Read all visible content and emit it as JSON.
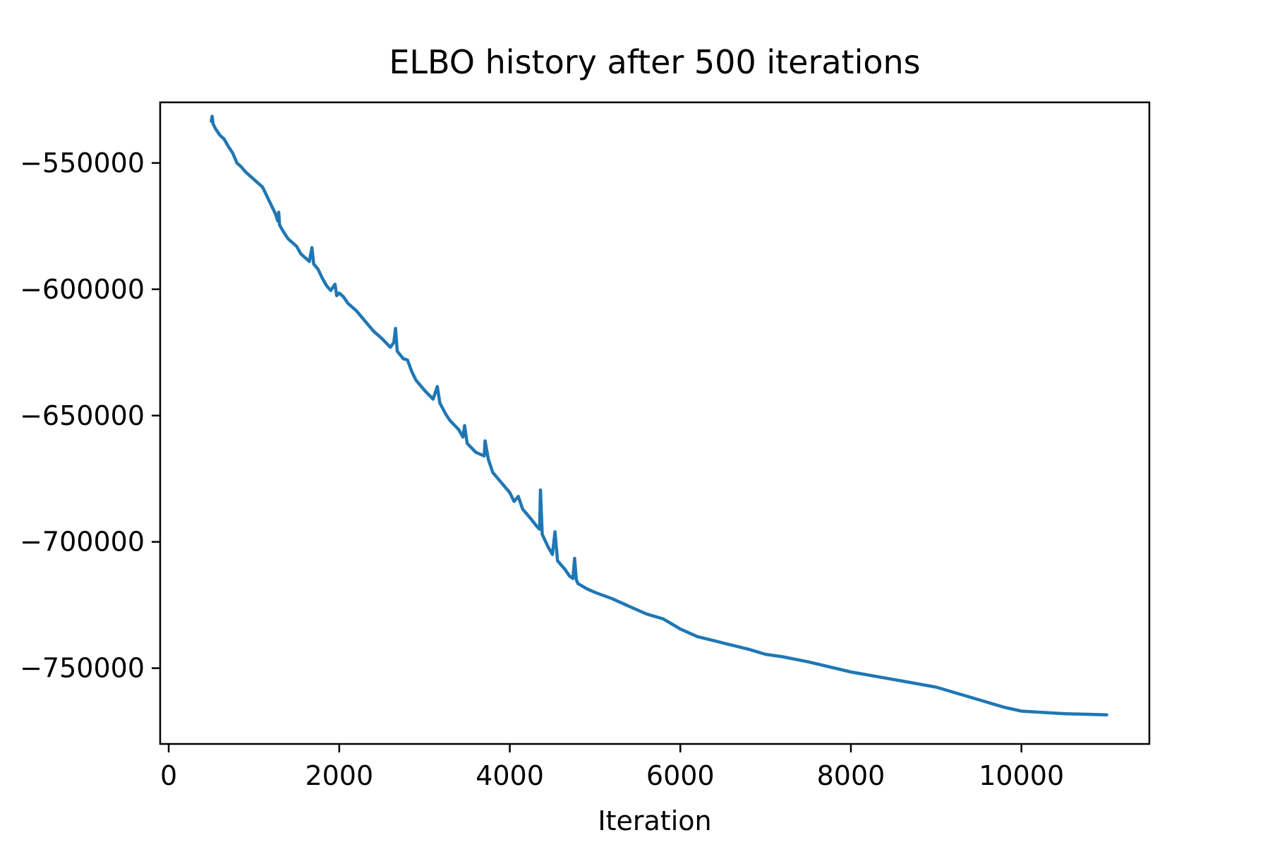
{
  "chart_data": {
    "type": "line",
    "title": "ELBO history after 500 iterations",
    "xlabel": "Iteration",
    "ylabel": "",
    "xlim": [
      -100,
      11500
    ],
    "ylim": [
      -780000,
      -526000
    ],
    "grid": false,
    "legend": "none",
    "x_ticks": [
      {
        "value": 0,
        "label": "0"
      },
      {
        "value": 2000,
        "label": "2000"
      },
      {
        "value": 4000,
        "label": "4000"
      },
      {
        "value": 6000,
        "label": "6000"
      },
      {
        "value": 8000,
        "label": "8000"
      },
      {
        "value": 10000,
        "label": "10000"
      }
    ],
    "y_ticks": [
      {
        "value": -550000,
        "label": "−550000"
      },
      {
        "value": -600000,
        "label": "−600000"
      },
      {
        "value": -650000,
        "label": "−650000"
      },
      {
        "value": -700000,
        "label": "−700000"
      },
      {
        "value": -750000,
        "label": "−750000"
      }
    ],
    "series": [
      {
        "color": "#1f77b4",
        "points": [
          [
            500,
            -533500
          ],
          [
            510,
            -531500
          ],
          [
            520,
            -534500
          ],
          [
            550,
            -536500
          ],
          [
            600,
            -539000
          ],
          [
            650,
            -540500
          ],
          [
            700,
            -543500
          ],
          [
            750,
            -546000
          ],
          [
            800,
            -550000
          ],
          [
            850,
            -551500
          ],
          [
            900,
            -553500
          ],
          [
            1000,
            -556500
          ],
          [
            1100,
            -559500
          ],
          [
            1150,
            -563000
          ],
          [
            1200,
            -566500
          ],
          [
            1250,
            -570000
          ],
          [
            1280,
            -573000
          ],
          [
            1290,
            -569500
          ],
          [
            1300,
            -574500
          ],
          [
            1350,
            -577500
          ],
          [
            1400,
            -580000
          ],
          [
            1500,
            -583000
          ],
          [
            1550,
            -586000
          ],
          [
            1600,
            -587500
          ],
          [
            1650,
            -589000
          ],
          [
            1680,
            -583500
          ],
          [
            1700,
            -590000
          ],
          [
            1750,
            -592000
          ],
          [
            1800,
            -595500
          ],
          [
            1850,
            -598500
          ],
          [
            1900,
            -600500
          ],
          [
            1950,
            -598000
          ],
          [
            1970,
            -602500
          ],
          [
            2000,
            -601500
          ],
          [
            2050,
            -603000
          ],
          [
            2100,
            -605500
          ],
          [
            2200,
            -608500
          ],
          [
            2300,
            -612500
          ],
          [
            2400,
            -616500
          ],
          [
            2500,
            -619500
          ],
          [
            2600,
            -623000
          ],
          [
            2640,
            -621000
          ],
          [
            2660,
            -615500
          ],
          [
            2680,
            -624500
          ],
          [
            2750,
            -627500
          ],
          [
            2800,
            -628000
          ],
          [
            2850,
            -632500
          ],
          [
            2900,
            -636000
          ],
          [
            3000,
            -640000
          ],
          [
            3100,
            -643500
          ],
          [
            3150,
            -638500
          ],
          [
            3180,
            -645000
          ],
          [
            3250,
            -649500
          ],
          [
            3300,
            -652000
          ],
          [
            3400,
            -655500
          ],
          [
            3450,
            -658500
          ],
          [
            3470,
            -654000
          ],
          [
            3500,
            -661000
          ],
          [
            3600,
            -664500
          ],
          [
            3700,
            -666000
          ],
          [
            3710,
            -660000
          ],
          [
            3750,
            -667500
          ],
          [
            3800,
            -672500
          ],
          [
            3900,
            -676500
          ],
          [
            4000,
            -680500
          ],
          [
            4050,
            -684000
          ],
          [
            4100,
            -682000
          ],
          [
            4150,
            -687000
          ],
          [
            4250,
            -691000
          ],
          [
            4320,
            -694000
          ],
          [
            4350,
            -695000
          ],
          [
            4360,
            -679500
          ],
          [
            4380,
            -697000
          ],
          [
            4450,
            -702000
          ],
          [
            4500,
            -705000
          ],
          [
            4530,
            -696000
          ],
          [
            4560,
            -707500
          ],
          [
            4650,
            -711000
          ],
          [
            4700,
            -713500
          ],
          [
            4740,
            -714500
          ],
          [
            4760,
            -706500
          ],
          [
            4780,
            -715000
          ],
          [
            4800,
            -716500
          ],
          [
            4900,
            -718500
          ],
          [
            5000,
            -720000
          ],
          [
            5200,
            -722500
          ],
          [
            5400,
            -725500
          ],
          [
            5600,
            -728500
          ],
          [
            5800,
            -730500
          ],
          [
            5900,
            -732500
          ],
          [
            6000,
            -734500
          ],
          [
            6200,
            -737500
          ],
          [
            6500,
            -740000
          ],
          [
            6800,
            -742500
          ],
          [
            7000,
            -744500
          ],
          [
            7200,
            -745500
          ],
          [
            7500,
            -747500
          ],
          [
            8000,
            -751500
          ],
          [
            8500,
            -754500
          ],
          [
            9000,
            -757500
          ],
          [
            9500,
            -762500
          ],
          [
            9800,
            -765500
          ],
          [
            10000,
            -767000
          ],
          [
            10500,
            -768000
          ],
          [
            11000,
            -768500
          ]
        ]
      }
    ]
  }
}
